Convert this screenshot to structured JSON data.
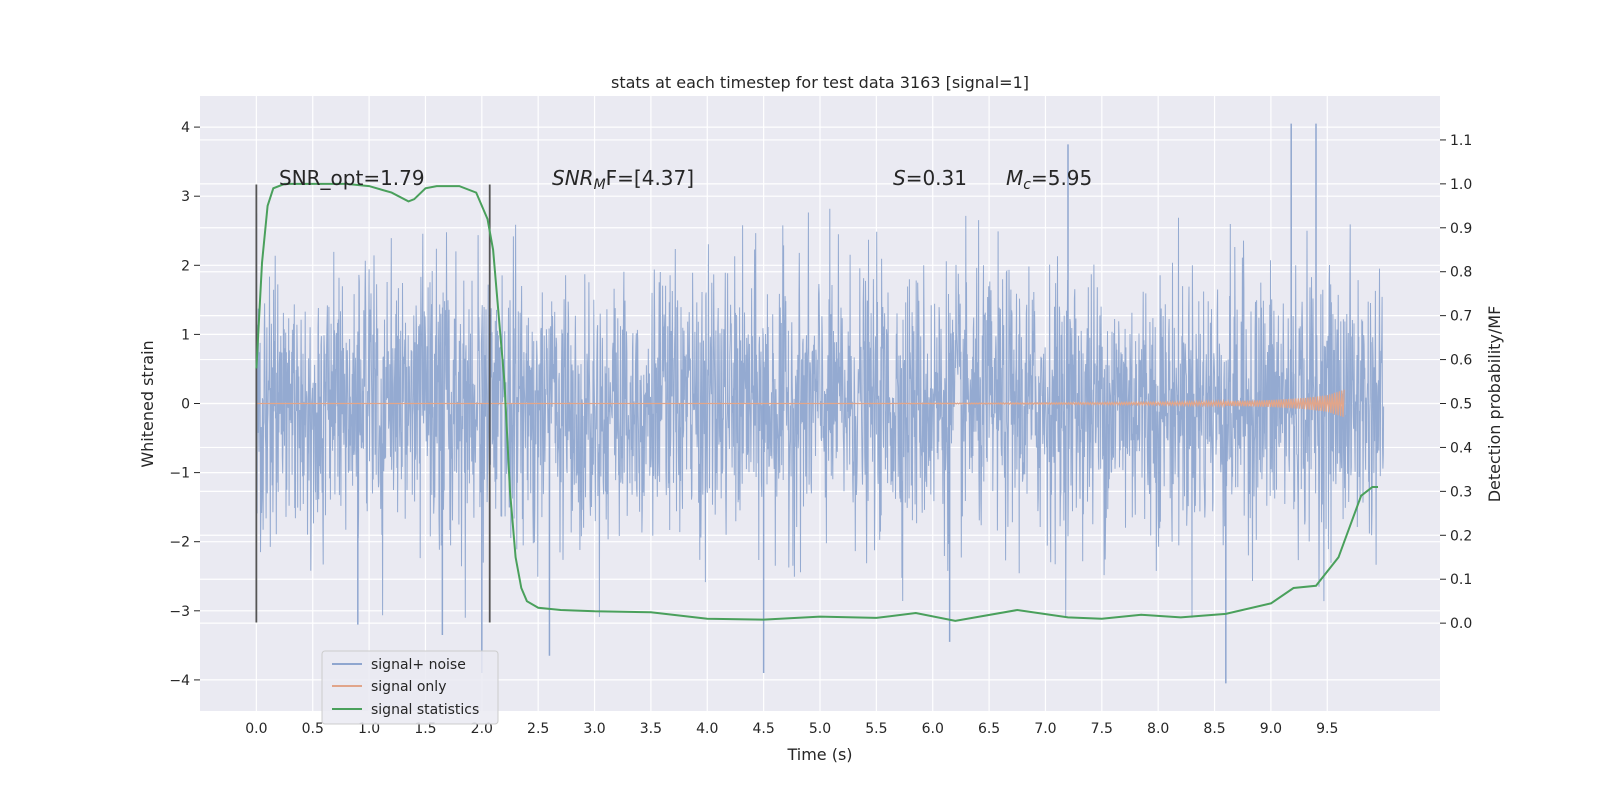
{
  "chart_data": {
    "type": "line",
    "title": "stats at each timestep for test data 3163 [signal=1]",
    "xlabel": "Time (s)",
    "ylabel_left": "Whitened strain",
    "ylabel_right": "Detection probability/MF",
    "xlim": [
      -0.5,
      10.5
    ],
    "ylim_left": [
      -4.45,
      4.45
    ],
    "ylim_right": [
      -0.2,
      1.2
    ],
    "x_ticks": [
      "0.0",
      "0.5",
      "1.0",
      "1.5",
      "2.0",
      "2.5",
      "3.0",
      "3.5",
      "4.0",
      "4.5",
      "5.0",
      "5.5",
      "6.0",
      "6.5",
      "7.0",
      "7.5",
      "8.0",
      "8.5",
      "9.0",
      "9.5"
    ],
    "y_ticks_left": [
      "4",
      "3",
      "2",
      "1",
      "0",
      "−1",
      "−2",
      "−3",
      "−4"
    ],
    "y_ticks_right": [
      "1.1",
      "1.0",
      "0.9",
      "0.8",
      "0.7",
      "0.6",
      "0.5",
      "0.4",
      "0.3",
      "0.2",
      "0.1",
      "0.0"
    ],
    "grid": true,
    "legend_position": "lower-left",
    "annotations": {
      "snr_opt": "SNR_opt=1.79",
      "snr_mf_pre": "SNR",
      "snr_mf_sub": "M",
      "snr_mf_post": "F=[4.37]",
      "s_var": "S",
      "s_val": "=0.31",
      "mc_var": "M",
      "mc_sub": "c",
      "mc_val": "=5.95"
    },
    "vertical_lines_x": [
      0.0,
      2.07
    ],
    "series": [
      {
        "name": "signal+ noise",
        "color": "#8fa6cf",
        "axis": "left",
        "x_range": [
          0.0,
          10.0
        ],
        "envelope_typical": 2.0,
        "notable_spikes": [
          {
            "x": 0.0,
            "y": 2.75
          },
          {
            "x": 2.0,
            "y": -3.9
          },
          {
            "x": 4.5,
            "y": -3.9
          },
          {
            "x": 7.2,
            "y": 3.75
          },
          {
            "x": 8.6,
            "y": -4.05
          },
          {
            "x": 9.18,
            "y": 4.05
          },
          {
            "x": 9.4,
            "y": 4.05
          },
          {
            "x": 6.15,
            "y": -3.45
          },
          {
            "x": 2.6,
            "y": -3.65
          },
          {
            "x": 0.9,
            "y": -3.2
          },
          {
            "x": 1.65,
            "y": -3.35
          }
        ]
      },
      {
        "name": "signal only",
        "color": "#e1a58a",
        "axis": "left",
        "x": [
          0.0,
          5.0,
          6.0,
          7.0,
          8.0,
          8.5,
          9.0,
          9.3,
          9.5,
          9.65
        ],
        "amplitude": [
          0.0,
          0.0,
          0.005,
          0.01,
          0.02,
          0.03,
          0.05,
          0.08,
          0.12,
          0.2
        ]
      },
      {
        "name": "signal statistics",
        "color": "#4aa05c",
        "axis": "right",
        "x": [
          0.0,
          0.05,
          0.1,
          0.15,
          0.25,
          0.5,
          0.8,
          1.0,
          1.2,
          1.35,
          1.4,
          1.5,
          1.6,
          1.8,
          1.95,
          2.05,
          2.1,
          2.15,
          2.2,
          2.25,
          2.3,
          2.35,
          2.4,
          2.5,
          2.7,
          3.0,
          3.5,
          4.0,
          4.5,
          5.0,
          5.5,
          5.85,
          6.2,
          6.75,
          7.2,
          7.5,
          7.85,
          8.2,
          8.6,
          9.0,
          9.2,
          9.4,
          9.6,
          9.8,
          9.9,
          9.95
        ],
        "y": [
          0.58,
          0.82,
          0.95,
          0.99,
          1.0,
          1.0,
          1.0,
          0.995,
          0.98,
          0.96,
          0.965,
          0.99,
          0.995,
          0.995,
          0.98,
          0.92,
          0.85,
          0.7,
          0.55,
          0.3,
          0.15,
          0.08,
          0.05,
          0.035,
          0.03,
          0.027,
          0.025,
          0.01,
          0.008,
          0.015,
          0.012,
          0.023,
          0.005,
          0.03,
          0.013,
          0.01,
          0.019,
          0.013,
          0.021,
          0.045,
          0.08,
          0.085,
          0.15,
          0.29,
          0.31,
          0.31
        ]
      }
    ]
  }
}
